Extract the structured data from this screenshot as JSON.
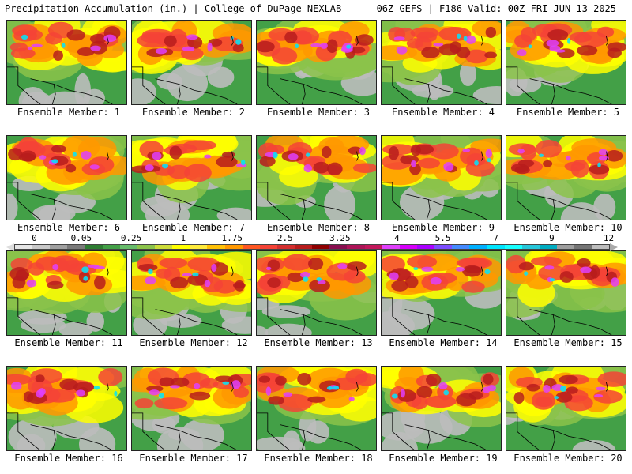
{
  "header": {
    "left": "Precipitation Accumulation (in.) | College of DuPage NEXLAB",
    "right": "06Z GEFS | F186 Valid: 00Z FRI JUN 13 2025"
  },
  "legend": {
    "ticks": [
      "0",
      "0.05",
      "0.25",
      "1",
      "1.75",
      "2.5",
      "3.25",
      "4",
      "5.5",
      "7",
      "9",
      "12"
    ],
    "colors": [
      "#e6e6e6",
      "#c8c8c8",
      "#a0a0a0",
      "#7a7a7a",
      "#2e7d32",
      "#43a047",
      "#66bb6a",
      "#8bc34a",
      "#cddc39",
      "#ffff00",
      "#ffeb3b",
      "#ffc107",
      "#ff9800",
      "#ff5722",
      "#f44336",
      "#d32f2f",
      "#b71c1c",
      "#8e0000",
      "#880e4f",
      "#ad1457",
      "#c2185b",
      "#e040fb",
      "#d500f9",
      "#aa00ff",
      "#7c4dff",
      "#448aff",
      "#00b0ff",
      "#00e5ff",
      "#18ffff",
      "#26c6da",
      "#00acc1",
      "#9e9e9e",
      "#757575",
      "#bdbdbd"
    ]
  },
  "panel_label_prefix": "Ensemble Member: ",
  "members": [
    "1",
    "2",
    "3",
    "4",
    "5",
    "6",
    "7",
    "8",
    "9",
    "10",
    "11",
    "12",
    "13",
    "14",
    "15",
    "16",
    "17",
    "18",
    "19",
    "20"
  ]
}
